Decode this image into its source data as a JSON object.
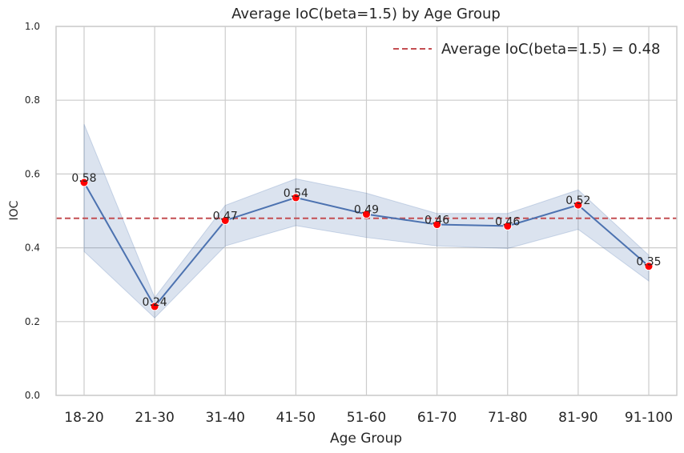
{
  "chart_data": {
    "type": "line",
    "title": "Average IoC(beta=1.5) by Age Group",
    "xlabel": "Age Group",
    "ylabel": "IOC",
    "categories": [
      "18-20",
      "21-30",
      "31-40",
      "41-50",
      "51-60",
      "61-70",
      "71-80",
      "81-90",
      "91-100"
    ],
    "series": [
      {
        "values": [
          0.577,
          0.241,
          0.474,
          0.536,
          0.491,
          0.463,
          0.459,
          0.516,
          0.35
        ],
        "ci_lower": [
          0.39,
          0.21,
          0.405,
          0.46,
          0.428,
          0.405,
          0.398,
          0.45,
          0.31
        ],
        "ci_upper": [
          0.735,
          0.265,
          0.515,
          0.587,
          0.548,
          0.493,
          0.493,
          0.557,
          0.38
        ]
      }
    ],
    "data_labels": [
      "0.58",
      "0.24",
      "0.47",
      "0.54",
      "0.49",
      "0.46",
      "0.46",
      "0.52",
      "0.35"
    ],
    "reference_line": {
      "value": 0.48,
      "label": "Average IoC(beta=1.5) = 0.48",
      "color": "#c44e52"
    },
    "ylim": [
      0.0,
      1.0
    ],
    "yticks": [
      "0.0",
      "0.2",
      "0.4",
      "0.6",
      "0.8",
      "1.0"
    ],
    "grid": true,
    "legend_position": "top-right",
    "colors": {
      "line": "#4c72b0",
      "band": "#4c72b0",
      "marker": "#ff0000",
      "grid": "#cccccc"
    }
  }
}
